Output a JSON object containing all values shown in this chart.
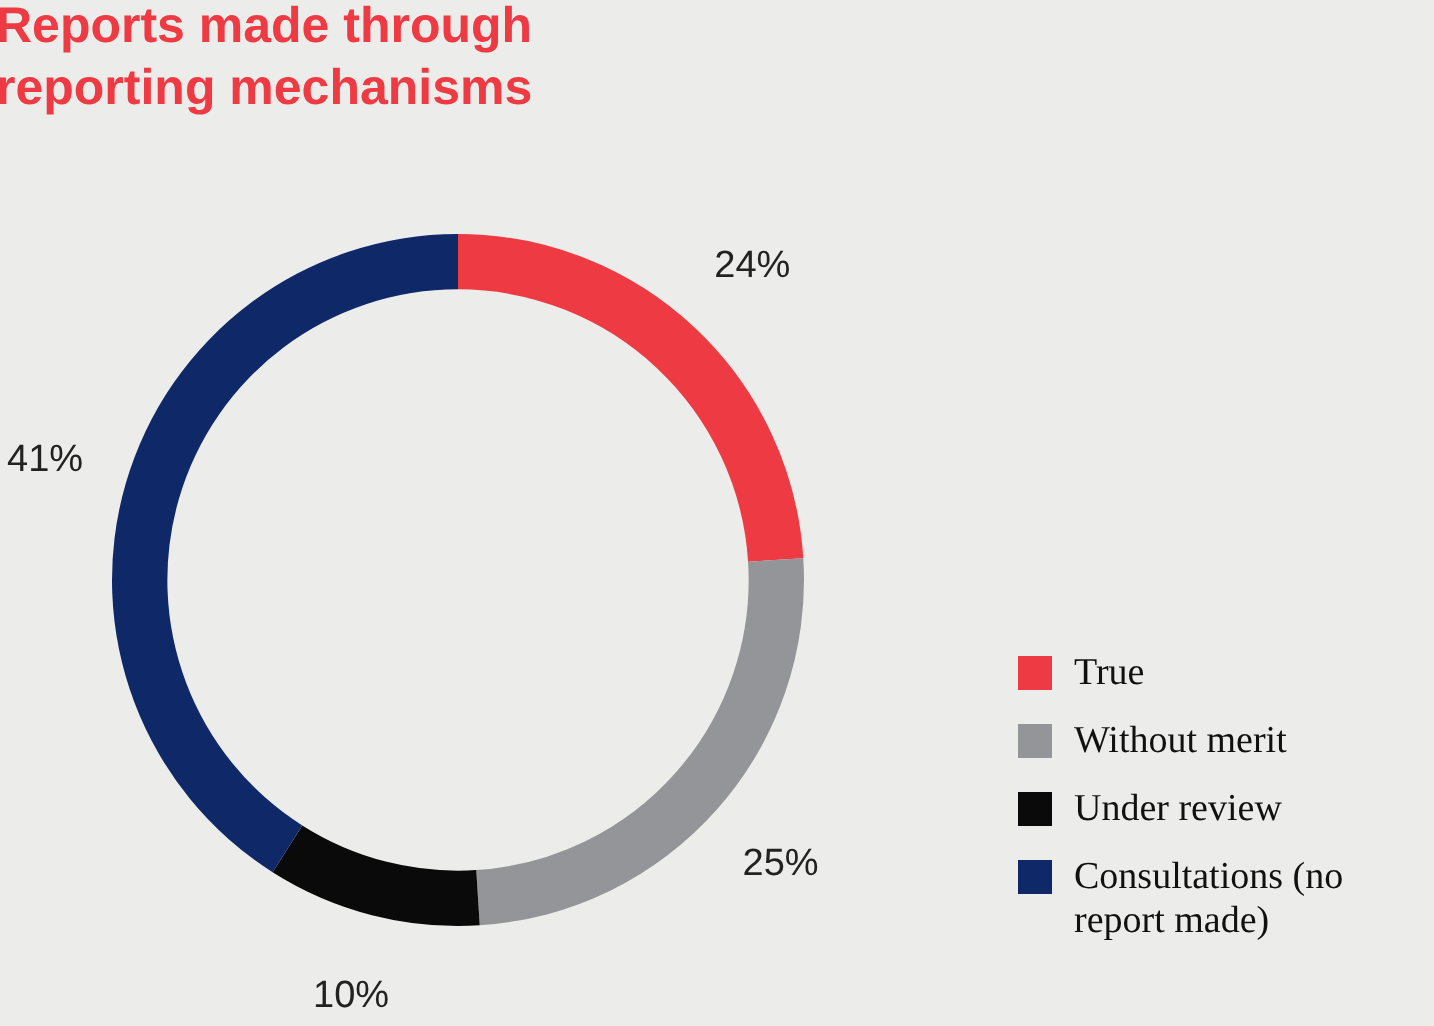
{
  "chart_data": {
    "type": "donut",
    "title": "Reports made through reporting mechanisms",
    "categories": [
      "True",
      "Without merit",
      "Under review",
      "Consultations (no report made)"
    ],
    "values": [
      24,
      25,
      10,
      41
    ],
    "colors": [
      "#ee3a43",
      "#949598",
      "#0a0a0a",
      "#0f2968"
    ],
    "value_labels": [
      "24%",
      "25%",
      "10%",
      "41%"
    ],
    "legend": "right"
  }
}
